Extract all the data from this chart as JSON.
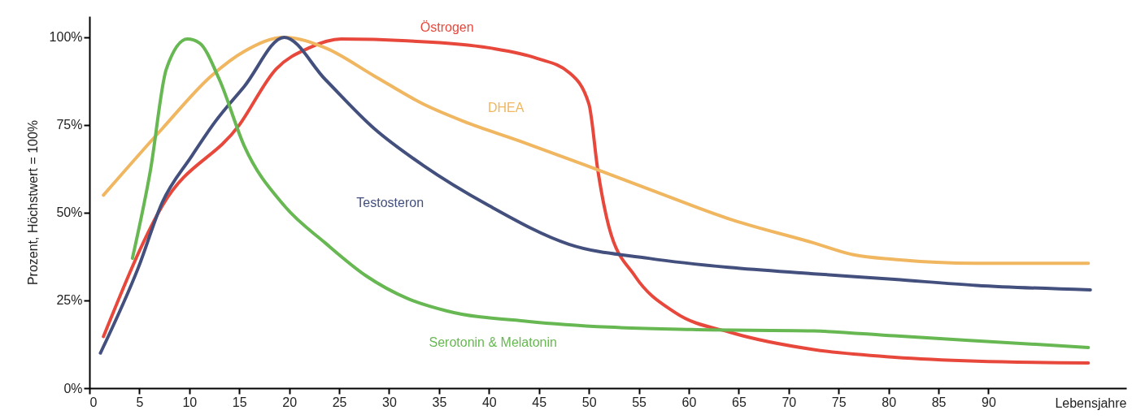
{
  "chart_data": {
    "type": "line",
    "xlabel": "Lebensjahre",
    "ylabel": "Prozent, Höchstwert = 100%",
    "xlim": [
      0,
      103.8
    ],
    "xticks": [
      0,
      5,
      10,
      15,
      20,
      25,
      30,
      35,
      40,
      45,
      50,
      55,
      60,
      65,
      70,
      75,
      80,
      85,
      90
    ],
    "ylim": [
      0,
      106
    ],
    "yticks": [
      {
        "value": 0,
        "label": "0%"
      },
      {
        "value": 25,
        "label": "25%"
      },
      {
        "value": 50,
        "label": "50%"
      },
      {
        "value": 75,
        "label": "75%"
      },
      {
        "value": 100,
        "label": "100%"
      }
    ],
    "grid": false,
    "legend": false,
    "marker": "none",
    "line_style": "solid",
    "series": [
      {
        "name": "Östrogen",
        "color": "#e8483b",
        "x": [
          1.4,
          7.3,
          15,
          18.7,
          22,
          25.2,
          31.8,
          40,
          44.8,
          48,
          50,
          50.9,
          52,
          54.6,
          58.6,
          64.3,
          72.5,
          80.6,
          88.8,
          100
        ],
        "values": [
          14.7,
          52,
          75,
          91,
          97,
          99.5,
          99,
          97,
          94,
          90,
          81,
          62,
          46,
          32,
          21.6,
          15.8,
          11,
          8.8,
          7.7,
          7.2
        ]
      },
      {
        "name": "DHEA",
        "color": "#f0b660",
        "x": [
          1.4,
          7.3,
          12.2,
          15.5,
          19.5,
          23.6,
          28.5,
          33.4,
          37.5,
          43,
          49.7,
          56.2,
          64.3,
          72.5,
          76.5,
          80.6,
          88.8,
          100
        ],
        "values": [
          55,
          74,
          89,
          96,
          100,
          97,
          89,
          81,
          76,
          70.5,
          63.5,
          56.5,
          48,
          41.4,
          38,
          36.7,
          35.6,
          35.6
        ]
      },
      {
        "name": "Testosteron",
        "color": "#434f7d",
        "x": [
          1.1,
          4.9,
          7.3,
          10.2,
          12.6,
          15.5,
          19.5,
          23.6,
          28.5,
          33.4,
          40,
          48,
          56,
          64,
          72.5,
          80.6,
          88.8,
          100.2
        ],
        "values": [
          10,
          34.4,
          53,
          66,
          76,
          86,
          100,
          88,
          74,
          63.5,
          52,
          41,
          37,
          34.4,
          32.6,
          31,
          29.3,
          28
        ]
      },
      {
        "name": "Serotonin & Melatonin",
        "color": "#67b852",
        "x": [
          4.3,
          6.1,
          7.7,
          9.8,
          11,
          13,
          15.5,
          19.5,
          23.6,
          27.7,
          31.8,
          35.8,
          44,
          52,
          60.3,
          72.5,
          80.6,
          88.8,
          100
        ],
        "values": [
          37,
          62,
          91,
          99.5,
          98.4,
          88,
          69,
          52,
          41.4,
          32,
          25.6,
          22,
          19,
          17.4,
          16.7,
          16.3,
          14.9,
          13.5,
          11.6
        ]
      }
    ]
  }
}
